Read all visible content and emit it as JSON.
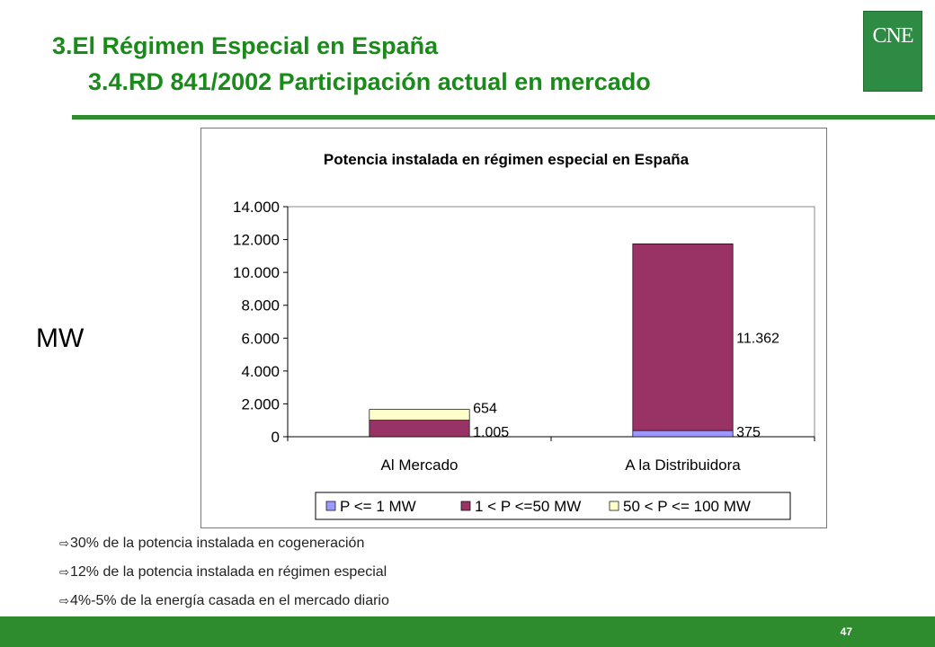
{
  "header": {
    "title_line1": "3.El Régimen Especial en España",
    "title_line2": "3.4.RD 841/2002   Participación actual en mercado",
    "logo_text": "CNE"
  },
  "side_label": "MW",
  "chart_data": {
    "type": "bar",
    "stacked": true,
    "title": "Potencia instalada en régimen especial en España",
    "categories": [
      "Al Mercado",
      "A la Distribuidora"
    ],
    "series": [
      {
        "name": "P <= 1 MW",
        "values": [
          0,
          375
        ],
        "color": "#9999ff",
        "labels": [
          "",
          "375"
        ]
      },
      {
        "name": "1 < P <=50 MW",
        "values": [
          1005,
          11362
        ],
        "color": "#993366",
        "labels": [
          "1.005",
          "11.362"
        ]
      },
      {
        "name": "50 < P <= 100 MW",
        "values": [
          654,
          0
        ],
        "color": "#ffffcc",
        "labels": [
          "654",
          ""
        ]
      }
    ],
    "y_ticks": [
      "0",
      "2.000",
      "4.000",
      "6.000",
      "8.000",
      "10.000",
      "12.000",
      "14.000"
    ],
    "ylim": [
      0,
      14000
    ],
    "grid": false,
    "legend_position": "bottom"
  },
  "bullets": [
    "30% de la potencia instalada en cogeneración",
    "12% de la potencia instalada en régimen especial",
    "4%-5% de la energía casada en el mercado diario"
  ],
  "bullet_icon": "arrow-right-icon",
  "bullet_glyph": "⇨",
  "footer": {
    "page_number": "47"
  }
}
